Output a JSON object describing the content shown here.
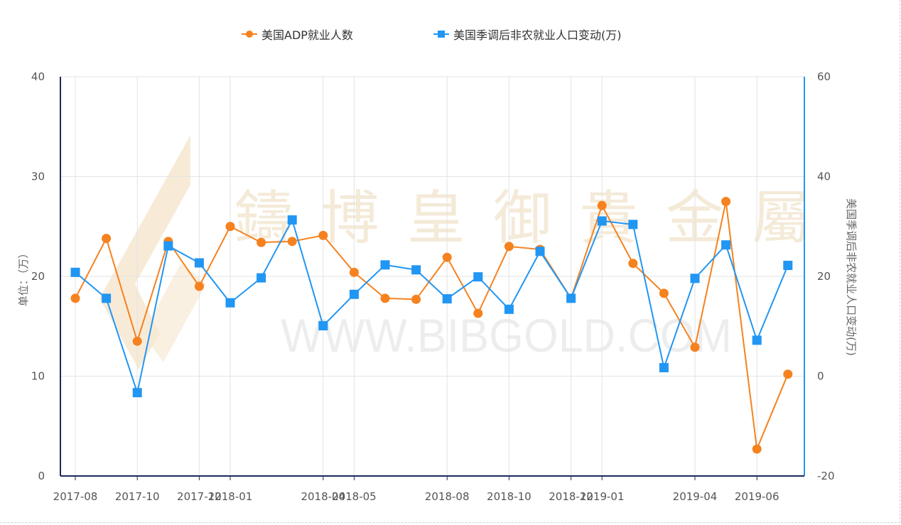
{
  "legend": {
    "series1": "美国ADP就业人数",
    "series2": "美国季调后非农就业人口变动(万)"
  },
  "watermark": {
    "brand_cn": "鑄博皇御貴金屬",
    "brand_url": "WWW.BIBGOLD.COM"
  },
  "colors": {
    "series1": "#f5821f",
    "series2": "#2196f3",
    "left_axis": "#1a2a5e",
    "right_axis": "#2196f3",
    "grid": "#e3e3e3"
  },
  "chart_data": {
    "type": "line",
    "x": [
      "2017-08",
      "2017-09",
      "2017-10",
      "2017-11",
      "2017-12",
      "2018-01",
      "2018-02",
      "2018-03",
      "2018-04",
      "2018-05",
      "2018-06",
      "2018-07",
      "2018-08",
      "2018-09",
      "2018-10",
      "2018-11",
      "2018-12",
      "2019-01",
      "2019-02",
      "2019-03",
      "2019-04",
      "2019-05",
      "2019-06",
      "2019-07"
    ],
    "x_tick_labels": [
      "2017-08",
      "2017-10",
      "2017-12",
      "2018-01",
      "2018-04",
      "2018-05",
      "2018-08",
      "2018-10",
      "2018-12",
      "2019-01",
      "2019-04",
      "2019-06"
    ],
    "ylabel_left": "单位：（万）",
    "ylabel_right": "美国季调后非农就业人口变动(万)",
    "ylim_left": [
      0,
      40
    ],
    "ylim_right": [
      -20,
      60
    ],
    "yticks_left": [
      0,
      10,
      20,
      30,
      40
    ],
    "yticks_right": [
      -20,
      0,
      20,
      40,
      60
    ],
    "grid": true,
    "legend_position": "top",
    "series": [
      {
        "name": "美国ADP就业人数",
        "axis": "left",
        "marker": "circle",
        "values": [
          17.8,
          23.8,
          13.5,
          23.5,
          19.0,
          25.0,
          23.4,
          23.5,
          24.1,
          20.4,
          17.8,
          17.7,
          21.9,
          16.3,
          23.0,
          22.7,
          17.8,
          27.1,
          21.3,
          18.3,
          12.9,
          27.5,
          2.7,
          10.2
        ]
      },
      {
        "name": "美国季调后非农就业人口变动(万)",
        "axis": "right",
        "marker": "square",
        "values": [
          20.8,
          15.6,
          -3.3,
          26.1,
          22.7,
          14.7,
          19.7,
          31.3,
          10.1,
          16.4,
          22.3,
          21.3,
          15.5,
          19.9,
          13.4,
          25.0,
          15.6,
          31.1,
          30.4,
          1.7,
          19.6,
          26.3,
          7.2,
          22.2
        ]
      }
    ]
  }
}
